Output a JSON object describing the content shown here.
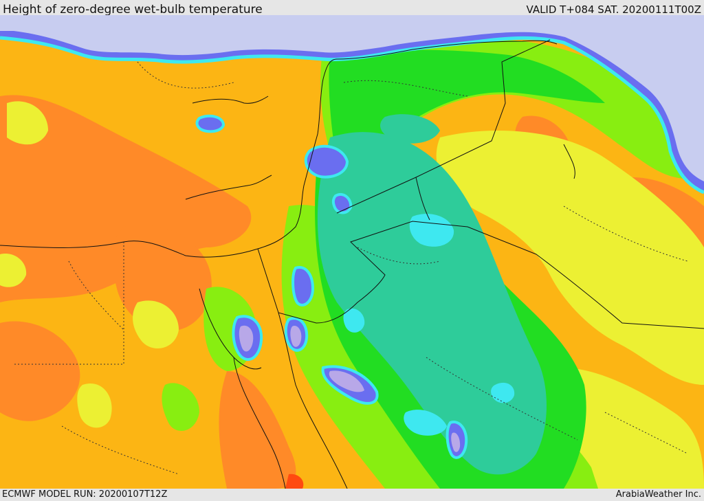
{
  "header": {
    "title": "Height of zero-degree wet-bulb temperature",
    "valid": "VALID T+084 SAT. 20200111T00Z"
  },
  "footer": {
    "model_run": "ECMWF MODEL RUN: 20200107T12Z",
    "credit": "ArabiaWeather Inc."
  },
  "colors": {
    "lavender": "#c8cdf0",
    "blue": "#6a6ef0",
    "purple_light": "#b8a8e8",
    "cyan": "#3ee8f0",
    "aqua": "#2ecdd0",
    "teal": "#2ecc9a",
    "green": "#22dd22",
    "lime": "#88ee11",
    "yellow_green": "#ccee22",
    "yellow": "#ecf033",
    "amber": "#fcb514",
    "orange": "#ff8a28",
    "red": "#ff4a10"
  }
}
